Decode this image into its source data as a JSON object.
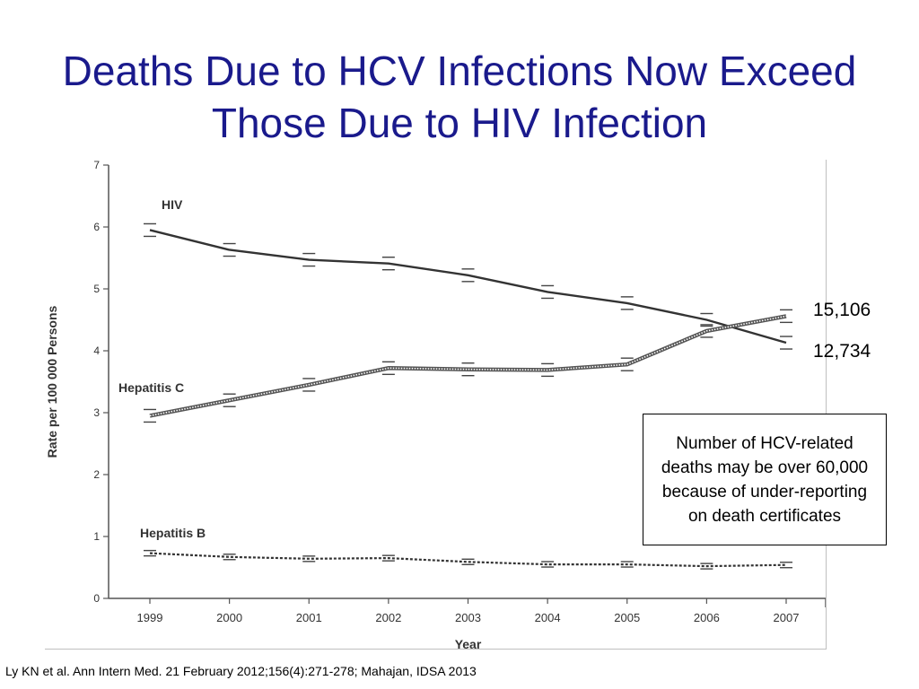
{
  "slide": {
    "title_line1": "Deaths Due to HCV Infections Now Exceed",
    "title_line2": "Those Due to HIV Infection",
    "hcv_count_label": "15,106",
    "hiv_count_label": "12,734",
    "note": "Number of HCV-related deaths may be over 60,000 because of under-reporting on death certificates",
    "citation": "Ly KN et al. Ann Intern Med. 21 February 2012;156(4):271-278; Mahajan, IDSA 2013",
    "title_color": "#1a1a8c"
  },
  "chart_data": {
    "type": "line",
    "xlabel": "Year",
    "ylabel": "Rate per 100 000 Persons",
    "x": [
      1999,
      2000,
      2001,
      2002,
      2003,
      2004,
      2005,
      2006,
      2007
    ],
    "ylim": [
      0,
      7
    ],
    "yticks": [
      0,
      1,
      2,
      3,
      4,
      5,
      6,
      7
    ],
    "grid": false,
    "series": [
      {
        "name": "HIV",
        "style": "solid",
        "values": [
          5.95,
          5.63,
          5.47,
          5.41,
          5.22,
          4.95,
          4.77,
          4.5,
          4.13
        ]
      },
      {
        "name": "Hepatitis C",
        "style": "dotted-double",
        "values": [
          2.95,
          3.2,
          3.45,
          3.72,
          3.7,
          3.69,
          3.78,
          4.32,
          4.56
        ]
      },
      {
        "name": "Hepatitis B",
        "style": "dashed",
        "values": [
          0.73,
          0.67,
          0.64,
          0.65,
          0.59,
          0.55,
          0.55,
          0.52,
          0.54
        ]
      }
    ]
  }
}
